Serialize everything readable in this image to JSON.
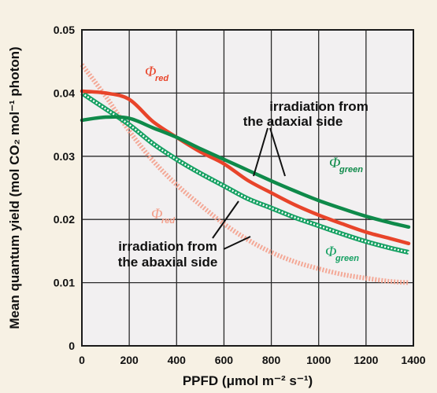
{
  "chart_data": {
    "type": "line",
    "xlabel": "PPFD (μmol m⁻² s⁻¹)",
    "ylabel": "Mean quantum yield (mol CO₂ mol⁻¹ photon)",
    "xlim": [
      0,
      1400
    ],
    "ylim": [
      0,
      0.05
    ],
    "xticks": [
      0,
      200,
      400,
      600,
      800,
      1000,
      1200,
      1400
    ],
    "yticks": [
      0,
      0.01,
      0.02,
      0.03,
      0.04,
      0.05
    ],
    "grid": true,
    "series": [
      {
        "name": "Φred (adaxial)",
        "color": "#e8442a",
        "style": "solid",
        "points": [
          [
            0,
            0.0403
          ],
          [
            100,
            0.04
          ],
          [
            200,
            0.039
          ],
          [
            300,
            0.0355
          ],
          [
            400,
            0.033
          ],
          [
            500,
            0.0307
          ],
          [
            600,
            0.0288
          ],
          [
            700,
            0.0262
          ],
          [
            800,
            0.0242
          ],
          [
            900,
            0.0223
          ],
          [
            1000,
            0.0207
          ],
          [
            1100,
            0.0193
          ],
          [
            1200,
            0.018
          ],
          [
            1300,
            0.017
          ],
          [
            1380,
            0.0162
          ]
        ]
      },
      {
        "name": "Φgreen (adaxial)",
        "color": "#0f8a4a",
        "style": "solid",
        "points": [
          [
            0,
            0.0357
          ],
          [
            100,
            0.0362
          ],
          [
            200,
            0.036
          ],
          [
            300,
            0.0345
          ],
          [
            400,
            0.033
          ],
          [
            500,
            0.0312
          ],
          [
            600,
            0.0295
          ],
          [
            700,
            0.0278
          ],
          [
            800,
            0.0261
          ],
          [
            900,
            0.0245
          ],
          [
            1000,
            0.023
          ],
          [
            1100,
            0.0217
          ],
          [
            1200,
            0.0205
          ],
          [
            1300,
            0.0195
          ],
          [
            1380,
            0.0188
          ]
        ]
      },
      {
        "name": "Φred (abaxial)",
        "color": "#f4a08c",
        "style": "dotted",
        "points": [
          [
            0,
            0.0445
          ],
          [
            100,
            0.0395
          ],
          [
            200,
            0.034
          ],
          [
            300,
            0.0293
          ],
          [
            400,
            0.0255
          ],
          [
            500,
            0.0223
          ],
          [
            600,
            0.0193
          ],
          [
            700,
            0.0168
          ],
          [
            800,
            0.0148
          ],
          [
            900,
            0.0133
          ],
          [
            1000,
            0.0122
          ],
          [
            1100,
            0.0113
          ],
          [
            1200,
            0.0107
          ],
          [
            1300,
            0.0102
          ],
          [
            1380,
            0.01
          ]
        ]
      },
      {
        "name": "Φgreen (abaxial)",
        "color": "#15a062",
        "style": "hollow-markers",
        "points": [
          [
            0,
            0.04
          ],
          [
            100,
            0.0375
          ],
          [
            200,
            0.035
          ],
          [
            300,
            0.032
          ],
          [
            400,
            0.0295
          ],
          [
            500,
            0.0273
          ],
          [
            600,
            0.0253
          ],
          [
            700,
            0.0233
          ],
          [
            800,
            0.0218
          ],
          [
            900,
            0.0203
          ],
          [
            1000,
            0.019
          ],
          [
            1100,
            0.0177
          ],
          [
            1200,
            0.0165
          ],
          [
            1300,
            0.0155
          ],
          [
            1380,
            0.0148
          ]
        ]
      }
    ],
    "annotations": {
      "adaxial": [
        "irradiation from",
        "the adaxial side"
      ],
      "abaxial": [
        "irradiation from",
        "the abaxial side"
      ],
      "phi_symbol": "Φ",
      "red_sub": "red",
      "green_sub": "green"
    }
  }
}
